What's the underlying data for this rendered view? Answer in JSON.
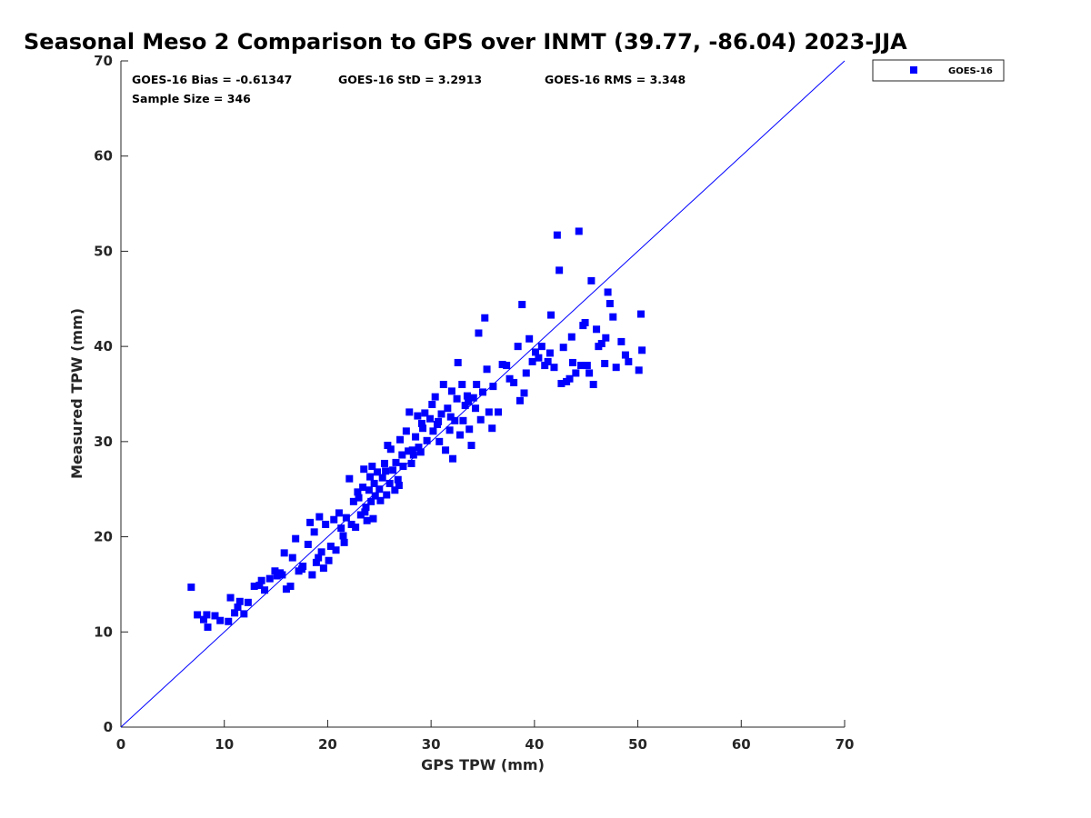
{
  "chart_data": {
    "type": "scatter",
    "title": "Seasonal Meso 2 Comparison to GPS over INMT (39.77, -86.04) 2023-JJA",
    "xlabel": "GPS TPW (mm)",
    "ylabel": "Measured TPW (mm)",
    "xlim": [
      0,
      70
    ],
    "ylim": [
      0,
      70
    ],
    "xticks": [
      "0",
      "10",
      "20",
      "30",
      "40",
      "50",
      "60",
      "70"
    ],
    "yticks": [
      "0",
      "10",
      "20",
      "30",
      "40",
      "50",
      "60",
      "70"
    ],
    "grid": false,
    "legend_position": "top-right outside",
    "stats": {
      "bias": "GOES-16 Bias = -0.61347",
      "std": "GOES-16 StD = 3.2913",
      "rms": "GOES-16 RMS = 3.348",
      "sample": "Sample Size = 346"
    },
    "one_to_one_line": true,
    "series": [
      {
        "name": "GOES-16",
        "color": "#0000ff",
        "marker": "square",
        "points": [
          [
            6.8,
            14.7
          ],
          [
            7.4,
            11.8
          ],
          [
            8.0,
            11.3
          ],
          [
            8.3,
            11.8
          ],
          [
            8.4,
            10.5
          ],
          [
            9.1,
            11.7
          ],
          [
            9.6,
            11.2
          ],
          [
            10.4,
            11.1
          ],
          [
            10.6,
            13.6
          ],
          [
            11.0,
            12.0
          ],
          [
            11.3,
            12.6
          ],
          [
            11.5,
            13.2
          ],
          [
            11.9,
            11.9
          ],
          [
            12.3,
            13.1
          ],
          [
            12.9,
            14.8
          ],
          [
            13.4,
            14.9
          ],
          [
            13.6,
            15.4
          ],
          [
            13.9,
            14.4
          ],
          [
            14.4,
            15.6
          ],
          [
            14.9,
            16.4
          ],
          [
            15.1,
            15.9
          ],
          [
            15.4,
            16.2
          ],
          [
            15.8,
            18.3
          ],
          [
            16.0,
            14.5
          ],
          [
            16.4,
            14.8
          ],
          [
            16.6,
            17.8
          ],
          [
            16.9,
            19.8
          ],
          [
            17.2,
            16.4
          ],
          [
            17.6,
            16.9
          ],
          [
            18.1,
            19.2
          ],
          [
            18.3,
            21.5
          ],
          [
            18.5,
            16.0
          ],
          [
            18.7,
            20.5
          ],
          [
            18.9,
            17.3
          ],
          [
            19.2,
            22.1
          ],
          [
            19.4,
            18.4
          ],
          [
            19.6,
            16.7
          ],
          [
            19.8,
            21.3
          ],
          [
            20.1,
            17.5
          ],
          [
            20.3,
            19.0
          ],
          [
            20.6,
            21.8
          ],
          [
            20.8,
            18.6
          ],
          [
            21.1,
            22.5
          ],
          [
            21.3,
            20.9
          ],
          [
            21.6,
            19.4
          ],
          [
            21.8,
            22.0
          ],
          [
            22.1,
            26.1
          ],
          [
            22.3,
            21.3
          ],
          [
            22.5,
            23.7
          ],
          [
            22.7,
            21.0
          ],
          [
            23.0,
            24.1
          ],
          [
            23.2,
            22.3
          ],
          [
            23.4,
            25.2
          ],
          [
            23.5,
            27.1
          ],
          [
            23.7,
            23.1
          ],
          [
            23.8,
            21.7
          ],
          [
            24.0,
            24.9
          ],
          [
            24.1,
            26.3
          ],
          [
            24.2,
            23.7
          ],
          [
            24.3,
            27.4
          ],
          [
            24.5,
            25.6
          ],
          [
            24.6,
            24.3
          ],
          [
            24.8,
            26.8
          ],
          [
            25.0,
            25.0
          ],
          [
            25.1,
            23.8
          ],
          [
            25.3,
            26.2
          ],
          [
            25.5,
            27.7
          ],
          [
            25.7,
            24.4
          ],
          [
            25.8,
            29.6
          ],
          [
            26.0,
            25.6
          ],
          [
            26.1,
            29.2
          ],
          [
            26.3,
            27.0
          ],
          [
            26.5,
            24.9
          ],
          [
            26.6,
            27.8
          ],
          [
            26.8,
            26.0
          ],
          [
            27.0,
            30.2
          ],
          [
            27.2,
            28.6
          ],
          [
            27.3,
            27.4
          ],
          [
            27.6,
            31.1
          ],
          [
            27.8,
            29.0
          ],
          [
            27.9,
            33.1
          ],
          [
            28.1,
            27.7
          ],
          [
            28.3,
            28.6
          ],
          [
            28.5,
            30.5
          ],
          [
            28.7,
            32.7
          ],
          [
            28.8,
            29.4
          ],
          [
            29.0,
            28.9
          ],
          [
            29.2,
            31.4
          ],
          [
            29.4,
            33.0
          ],
          [
            29.6,
            30.1
          ],
          [
            29.9,
            32.4
          ],
          [
            30.1,
            33.9
          ],
          [
            30.2,
            31.1
          ],
          [
            30.4,
            34.7
          ],
          [
            30.6,
            31.8
          ],
          [
            30.8,
            30.0
          ],
          [
            31.0,
            32.9
          ],
          [
            31.2,
            36.0
          ],
          [
            31.4,
            29.1
          ],
          [
            31.6,
            33.5
          ],
          [
            31.8,
            31.2
          ],
          [
            32.0,
            35.3
          ],
          [
            32.1,
            28.2
          ],
          [
            32.3,
            32.2
          ],
          [
            32.5,
            34.5
          ],
          [
            32.6,
            38.3
          ],
          [
            32.8,
            30.7
          ],
          [
            33.0,
            36.0
          ],
          [
            33.1,
            32.2
          ],
          [
            33.3,
            33.8
          ],
          [
            33.5,
            34.8
          ],
          [
            33.7,
            31.3
          ],
          [
            33.9,
            29.6
          ],
          [
            34.1,
            34.6
          ],
          [
            34.3,
            33.5
          ],
          [
            34.6,
            41.4
          ],
          [
            34.8,
            32.3
          ],
          [
            35.0,
            35.2
          ],
          [
            35.2,
            43.0
          ],
          [
            35.4,
            37.6
          ],
          [
            35.6,
            33.1
          ],
          [
            36.0,
            35.8
          ],
          [
            36.5,
            33.1
          ],
          [
            36.9,
            38.1
          ],
          [
            37.3,
            38.0
          ],
          [
            37.6,
            36.6
          ],
          [
            38.0,
            36.2
          ],
          [
            38.4,
            40.0
          ],
          [
            38.6,
            34.3
          ],
          [
            38.8,
            44.4
          ],
          [
            39.2,
            37.2
          ],
          [
            39.5,
            40.8
          ],
          [
            39.8,
            38.4
          ],
          [
            40.1,
            39.4
          ],
          [
            40.4,
            38.8
          ],
          [
            40.7,
            40.0
          ],
          [
            41.0,
            38.0
          ],
          [
            41.3,
            38.4
          ],
          [
            41.6,
            43.3
          ],
          [
            41.9,
            37.8
          ],
          [
            42.2,
            51.7
          ],
          [
            42.4,
            48.0
          ],
          [
            42.6,
            36.1
          ],
          [
            42.8,
            39.9
          ],
          [
            43.1,
            36.3
          ],
          [
            43.4,
            36.6
          ],
          [
            43.7,
            38.3
          ],
          [
            44.0,
            37.2
          ],
          [
            44.3,
            52.1
          ],
          [
            44.5,
            38.0
          ],
          [
            44.7,
            42.2
          ],
          [
            44.9,
            42.5
          ],
          [
            45.1,
            38.0
          ],
          [
            45.3,
            37.2
          ],
          [
            45.5,
            46.9
          ],
          [
            45.7,
            36.0
          ],
          [
            46.0,
            41.8
          ],
          [
            46.2,
            40.0
          ],
          [
            46.5,
            40.3
          ],
          [
            46.8,
            38.2
          ],
          [
            47.1,
            45.7
          ],
          [
            47.3,
            44.5
          ],
          [
            47.6,
            43.1
          ],
          [
            47.9,
            37.8
          ],
          [
            48.4,
            40.5
          ],
          [
            48.8,
            39.1
          ],
          [
            49.1,
            38.4
          ],
          [
            50.1,
            37.5
          ],
          [
            50.3,
            43.4
          ],
          [
            50.4,
            39.6
          ],
          [
            23.6,
            22.6
          ],
          [
            24.4,
            21.9
          ],
          [
            26.9,
            25.4
          ],
          [
            30.7,
            32.1
          ],
          [
            33.6,
            34.2
          ],
          [
            35.9,
            31.4
          ],
          [
            39.0,
            35.1
          ],
          [
            41.5,
            39.3
          ],
          [
            43.6,
            41.0
          ],
          [
            46.9,
            40.9
          ],
          [
            15.6,
            16.0
          ],
          [
            17.5,
            16.6
          ],
          [
            19.1,
            17.8
          ],
          [
            21.5,
            20.1
          ],
          [
            22.9,
            24.7
          ],
          [
            25.6,
            26.9
          ],
          [
            28.2,
            29.1
          ],
          [
            29.1,
            31.9
          ],
          [
            31.9,
            32.6
          ],
          [
            34.4,
            36.0
          ]
        ]
      }
    ]
  }
}
